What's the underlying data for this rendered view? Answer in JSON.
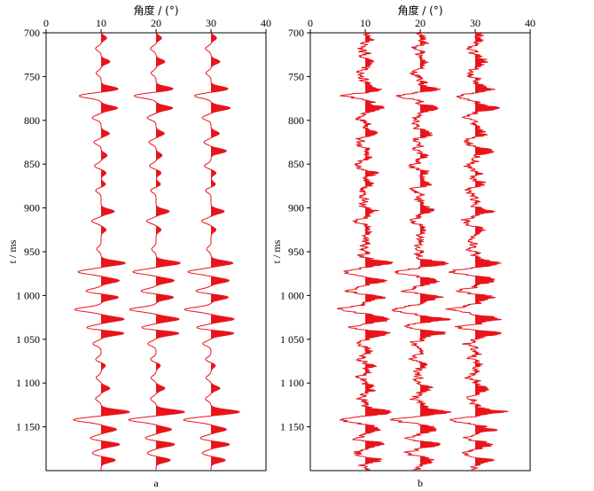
{
  "chart_data": [
    {
      "type": "line",
      "subtype": "seismic-wiggle-traces",
      "panel_label": "a",
      "xlabel": "角度 / (°)",
      "ylabel": "t / ms",
      "xlim": [
        0,
        40
      ],
      "ylim": [
        700,
        1200
      ],
      "y_reversed": true,
      "x_ticks": [
        0,
        10,
        20,
        30,
        40
      ],
      "y_ticks": [
        700,
        750,
        800,
        850,
        900,
        950,
        1000,
        1050,
        1100,
        1150
      ],
      "y_tick_labels": [
        "700",
        "750",
        "800",
        "850",
        "900",
        "950",
        "1 000",
        "1 050",
        "1 100",
        "1 150"
      ],
      "fill": "positive",
      "noise": 0,
      "series": [
        {
          "baseline": 10,
          "events": [
            [
              706,
              1.0
            ],
            [
              718,
              -1.0
            ],
            [
              733,
              1.6
            ],
            [
              746,
              -0.9
            ],
            [
              764,
              3.1
            ],
            [
              772,
              -4.0
            ],
            [
              786,
              3.0
            ],
            [
              797,
              -1.6
            ],
            [
              815,
              1.5
            ],
            [
              825,
              -1.3
            ],
            [
              840,
              1.1
            ],
            [
              852,
              -1.2
            ],
            [
              860,
              0.9
            ],
            [
              873,
              0.8
            ],
            [
              880,
              -1.0
            ],
            [
              904,
              2.4
            ],
            [
              915,
              -1.7
            ],
            [
              925,
              0.9
            ],
            [
              947,
              -0.8
            ],
            [
              963,
              4.4
            ],
            [
              973,
              -4.2
            ],
            [
              983,
              3.3
            ],
            [
              995,
              -2.8
            ],
            [
              1002,
              3.2
            ],
            [
              1016,
              -4.8
            ],
            [
              1027,
              4.2
            ],
            [
              1037,
              -2.8
            ],
            [
              1043,
              4.3
            ],
            [
              1055,
              -1.5
            ],
            [
              1073,
              -1.0
            ],
            [
              1080,
              0.8
            ],
            [
              1094,
              -0.9
            ],
            [
              1106,
              1.6
            ],
            [
              1118,
              -1.0
            ],
            [
              1133,
              5.2
            ],
            [
              1142,
              -5.0
            ],
            [
              1153,
              2.8
            ],
            [
              1163,
              -2.0
            ],
            [
              1170,
              3.4
            ],
            [
              1180,
              -1.6
            ],
            [
              1188,
              2.6
            ]
          ]
        },
        {
          "baseline": 20,
          "events": [
            [
              706,
              1.0
            ],
            [
              718,
              -1.0
            ],
            [
              733,
              1.6
            ],
            [
              746,
              -0.9
            ],
            [
              764,
              3.1
            ],
            [
              772,
              -4.0
            ],
            [
              786,
              3.0
            ],
            [
              797,
              -1.6
            ],
            [
              815,
              1.5
            ],
            [
              825,
              -1.3
            ],
            [
              840,
              1.1
            ],
            [
              852,
              -1.2
            ],
            [
              860,
              0.9
            ],
            [
              873,
              0.8
            ],
            [
              880,
              -1.0
            ],
            [
              904,
              2.4
            ],
            [
              915,
              -1.7
            ],
            [
              925,
              0.9
            ],
            [
              947,
              -0.8
            ],
            [
              963,
              4.4
            ],
            [
              973,
              -4.2
            ],
            [
              983,
              3.3
            ],
            [
              995,
              -2.8
            ],
            [
              1002,
              3.2
            ],
            [
              1016,
              -4.8
            ],
            [
              1027,
              4.2
            ],
            [
              1037,
              -2.8
            ],
            [
              1043,
              4.3
            ],
            [
              1055,
              -1.5
            ],
            [
              1073,
              -1.0
            ],
            [
              1080,
              0.8
            ],
            [
              1094,
              -0.9
            ],
            [
              1106,
              1.6
            ],
            [
              1118,
              -1.0
            ],
            [
              1133,
              5.2
            ],
            [
              1142,
              -5.0
            ],
            [
              1153,
              2.8
            ],
            [
              1163,
              -2.0
            ],
            [
              1170,
              3.4
            ],
            [
              1180,
              -1.6
            ],
            [
              1188,
              2.6
            ]
          ]
        },
        {
          "baseline": 30,
          "events": [
            [
              706,
              1.0
            ],
            [
              718,
              -1.0
            ],
            [
              733,
              1.6
            ],
            [
              746,
              -0.9
            ],
            [
              764,
              3.1
            ],
            [
              772,
              -3.0
            ],
            [
              786,
              3.5
            ],
            [
              797,
              -1.6
            ],
            [
              815,
              1.5
            ],
            [
              825,
              -1.3
            ],
            [
              835,
              2.8
            ],
            [
              852,
              -1.2
            ],
            [
              860,
              0.9
            ],
            [
              873,
              0.8
            ],
            [
              880,
              -1.0
            ],
            [
              904,
              2.4
            ],
            [
              915,
              -1.7
            ],
            [
              925,
              0.9
            ],
            [
              947,
              -0.8
            ],
            [
              963,
              4.0
            ],
            [
              973,
              -4.2
            ],
            [
              983,
              3.3
            ],
            [
              995,
              -2.8
            ],
            [
              1002,
              3.2
            ],
            [
              1016,
              -4.8
            ],
            [
              1027,
              4.2
            ],
            [
              1037,
              -2.8
            ],
            [
              1043,
              4.3
            ],
            [
              1055,
              -1.5
            ],
            [
              1073,
              -1.0
            ],
            [
              1080,
              0.8
            ],
            [
              1094,
              -0.9
            ],
            [
              1106,
              1.6
            ],
            [
              1118,
              -1.0
            ],
            [
              1133,
              5.2
            ],
            [
              1142,
              -5.0
            ],
            [
              1153,
              2.8
            ],
            [
              1163,
              -2.0
            ],
            [
              1170,
              3.4
            ],
            [
              1180,
              -1.6
            ],
            [
              1188,
              2.6
            ]
          ]
        }
      ]
    },
    {
      "type": "line",
      "subtype": "seismic-wiggle-traces",
      "panel_label": "b",
      "xlabel": "角度 / (°)",
      "ylabel": "t / ms",
      "xlim": [
        0,
        40
      ],
      "ylim": [
        700,
        1200
      ],
      "y_reversed": true,
      "x_ticks": [
        0,
        10,
        20,
        30,
        40
      ],
      "y_ticks": [
        700,
        750,
        800,
        850,
        900,
        950,
        1000,
        1050,
        1100,
        1150
      ],
      "y_tick_labels": [
        "700",
        "750",
        "800",
        "850",
        "900",
        "950",
        "1 000",
        "1 050",
        "1 100",
        "1 150"
      ],
      "fill": "positive",
      "noise": 1.0,
      "series": [
        {
          "baseline": 10,
          "events": [
            [
              706,
              1.0
            ],
            [
              718,
              -1.0
            ],
            [
              733,
              1.6
            ],
            [
              746,
              -0.9
            ],
            [
              764,
              3.1
            ],
            [
              772,
              -4.0
            ],
            [
              786,
              3.0
            ],
            [
              797,
              -1.6
            ],
            [
              815,
              1.5
            ],
            [
              825,
              -1.3
            ],
            [
              840,
              1.1
            ],
            [
              852,
              -1.2
            ],
            [
              860,
              0.9
            ],
            [
              873,
              0.8
            ],
            [
              880,
              -1.0
            ],
            [
              904,
              2.4
            ],
            [
              915,
              -1.7
            ],
            [
              925,
              0.9
            ],
            [
              947,
              -0.8
            ],
            [
              963,
              4.4
            ],
            [
              973,
              -4.2
            ],
            [
              983,
              3.3
            ],
            [
              995,
              -2.8
            ],
            [
              1002,
              3.2
            ],
            [
              1016,
              -4.8
            ],
            [
              1027,
              4.2
            ],
            [
              1037,
              -2.8
            ],
            [
              1043,
              4.3
            ],
            [
              1055,
              -1.5
            ],
            [
              1073,
              -1.0
            ],
            [
              1080,
              0.8
            ],
            [
              1094,
              -0.9
            ],
            [
              1106,
              1.6
            ],
            [
              1118,
              -1.0
            ],
            [
              1133,
              5.2
            ],
            [
              1142,
              -5.0
            ],
            [
              1153,
              2.8
            ],
            [
              1163,
              -2.0
            ],
            [
              1170,
              3.4
            ],
            [
              1180,
              -1.6
            ],
            [
              1188,
              2.6
            ]
          ]
        },
        {
          "baseline": 20,
          "events": [
            [
              706,
              1.0
            ],
            [
              718,
              -1.0
            ],
            [
              733,
              1.6
            ],
            [
              746,
              -0.9
            ],
            [
              764,
              3.1
            ],
            [
              772,
              -4.0
            ],
            [
              786,
              3.0
            ],
            [
              797,
              -1.6
            ],
            [
              815,
              1.5
            ],
            [
              825,
              -1.3
            ],
            [
              840,
              1.1
            ],
            [
              852,
              -1.2
            ],
            [
              860,
              0.9
            ],
            [
              873,
              0.8
            ],
            [
              880,
              -1.0
            ],
            [
              904,
              2.4
            ],
            [
              915,
              -1.7
            ],
            [
              925,
              0.9
            ],
            [
              947,
              -0.8
            ],
            [
              963,
              4.4
            ],
            [
              973,
              -4.2
            ],
            [
              983,
              3.3
            ],
            [
              995,
              -2.8
            ],
            [
              1002,
              3.2
            ],
            [
              1016,
              -4.8
            ],
            [
              1027,
              4.2
            ],
            [
              1037,
              -2.8
            ],
            [
              1043,
              4.3
            ],
            [
              1055,
              -1.5
            ],
            [
              1073,
              -1.0
            ],
            [
              1080,
              0.8
            ],
            [
              1094,
              -0.9
            ],
            [
              1106,
              1.6
            ],
            [
              1118,
              -1.0
            ],
            [
              1133,
              5.2
            ],
            [
              1142,
              -5.0
            ],
            [
              1153,
              2.8
            ],
            [
              1163,
              -2.0
            ],
            [
              1170,
              3.4
            ],
            [
              1180,
              -1.6
            ],
            [
              1188,
              2.6
            ]
          ]
        },
        {
          "baseline": 30,
          "events": [
            [
              706,
              1.0
            ],
            [
              718,
              -1.0
            ],
            [
              733,
              1.6
            ],
            [
              746,
              -0.9
            ],
            [
              764,
              3.1
            ],
            [
              772,
              -3.0
            ],
            [
              786,
              3.5
            ],
            [
              797,
              -1.6
            ],
            [
              815,
              1.5
            ],
            [
              825,
              -1.3
            ],
            [
              835,
              2.8
            ],
            [
              852,
              -1.2
            ],
            [
              860,
              0.9
            ],
            [
              873,
              0.8
            ],
            [
              880,
              -1.0
            ],
            [
              904,
              2.4
            ],
            [
              915,
              -1.7
            ],
            [
              925,
              0.9
            ],
            [
              947,
              -0.8
            ],
            [
              963,
              4.0
            ],
            [
              973,
              -4.2
            ],
            [
              983,
              3.3
            ],
            [
              995,
              -2.8
            ],
            [
              1002,
              3.2
            ],
            [
              1016,
              -4.8
            ],
            [
              1027,
              4.2
            ],
            [
              1037,
              -2.8
            ],
            [
              1043,
              4.3
            ],
            [
              1055,
              -1.5
            ],
            [
              1073,
              -1.0
            ],
            [
              1080,
              0.8
            ],
            [
              1094,
              -0.9
            ],
            [
              1106,
              1.6
            ],
            [
              1118,
              -1.0
            ],
            [
              1133,
              5.2
            ],
            [
              1142,
              -5.0
            ],
            [
              1153,
              2.8
            ],
            [
              1163,
              -2.0
            ],
            [
              1170,
              3.4
            ],
            [
              1180,
              -1.6
            ],
            [
              1188,
              2.6
            ]
          ]
        }
      ]
    }
  ],
  "colors": {
    "trace": "#e8141a",
    "axis": "#000000"
  }
}
